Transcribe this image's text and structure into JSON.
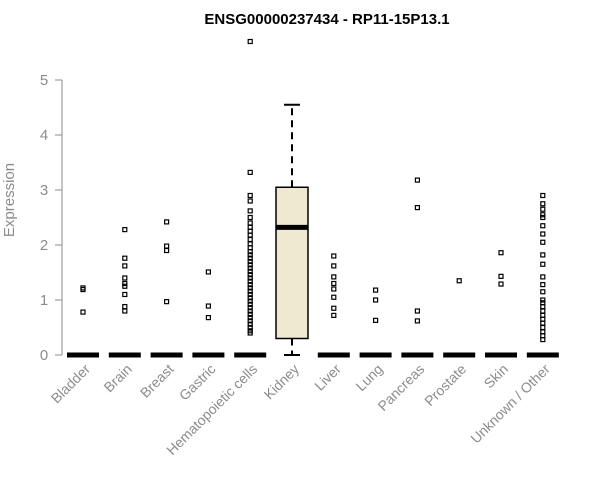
{
  "chart_data": {
    "type": "box",
    "title": "ENSG00000237434 - RP11-15P13.1",
    "ylabel": "Expression",
    "ylim": [
      0,
      5.5
    ],
    "yticks": [
      0,
      1,
      2,
      3,
      4,
      5
    ],
    "colors": {
      "box_fill": "#efe9d2",
      "axis": "#8c8c8c"
    },
    "categories": [
      "Bladder",
      "Brain",
      "Breast",
      "Gastric",
      "Hematopoietic cells",
      "Kidney",
      "Liver",
      "Lung",
      "Pancreas",
      "Prostate",
      "Skin",
      "Unknown / Other"
    ],
    "boxes": [
      {
        "category": "Bladder",
        "q1": 0,
        "median": 0,
        "q3": 0,
        "whisker_low": 0,
        "whisker_high": 0,
        "outliers": [
          1.22,
          1.19,
          0.78
        ]
      },
      {
        "category": "Brain",
        "q1": 0,
        "median": 0,
        "q3": 0,
        "whisker_low": 0,
        "whisker_high": 0,
        "outliers": [
          2.28,
          1.76,
          1.62,
          1.4,
          1.3,
          1.25,
          1.1,
          0.88,
          0.8
        ]
      },
      {
        "category": "Breast",
        "q1": 0,
        "median": 0,
        "q3": 0,
        "whisker_low": 0,
        "whisker_high": 0,
        "outliers": [
          2.42,
          1.98,
          1.9,
          0.97
        ]
      },
      {
        "category": "Gastric",
        "q1": 0,
        "median": 0,
        "q3": 0,
        "whisker_low": 0,
        "whisker_high": 0,
        "outliers": [
          1.51,
          0.89,
          0.68
        ]
      },
      {
        "category": "Hematopoietic cells",
        "q1": 0,
        "median": 0,
        "q3": 0,
        "whisker_low": 0,
        "whisker_high": 0,
        "outliers": [
          5.7,
          3.32,
          2.9,
          2.8,
          2.62,
          2.5,
          2.4,
          2.32,
          2.25,
          2.18,
          2.1,
          2.02,
          1.95,
          1.88,
          1.82,
          1.76,
          1.7,
          1.64,
          1.58,
          1.52,
          1.46,
          1.4,
          1.34,
          1.28,
          1.22,
          1.16,
          1.1,
          1.04,
          0.98,
          0.92,
          0.86,
          0.8,
          0.74,
          0.68,
          0.62,
          0.56,
          0.5,
          0.44,
          0.4
        ]
      },
      {
        "category": "Kidney",
        "q1": 0.3,
        "median": 2.32,
        "q3": 3.05,
        "whisker_low": 0.0,
        "whisker_high": 4.55,
        "outliers": []
      },
      {
        "category": "Liver",
        "q1": 0,
        "median": 0,
        "q3": 0,
        "whisker_low": 0,
        "whisker_high": 0,
        "outliers": [
          1.8,
          1.62,
          1.42,
          1.3,
          1.2,
          1.05,
          0.85,
          0.72
        ]
      },
      {
        "category": "Lung",
        "q1": 0,
        "median": 0,
        "q3": 0,
        "whisker_low": 0,
        "whisker_high": 0,
        "outliers": [
          1.18,
          1.0,
          0.63
        ]
      },
      {
        "category": "Pancreas",
        "q1": 0,
        "median": 0,
        "q3": 0,
        "whisker_low": 0,
        "whisker_high": 0,
        "outliers": [
          3.18,
          2.68,
          0.8,
          0.62
        ]
      },
      {
        "category": "Prostate",
        "q1": 0,
        "median": 0,
        "q3": 0,
        "whisker_low": 0,
        "whisker_high": 0,
        "outliers": [
          1.35
        ]
      },
      {
        "category": "Skin",
        "q1": 0,
        "median": 0,
        "q3": 0,
        "whisker_low": 0,
        "whisker_high": 0,
        "outliers": [
          1.86,
          1.43,
          1.29
        ]
      },
      {
        "category": "Unknown / Other",
        "q1": 0,
        "median": 0,
        "q3": 0,
        "whisker_low": 0,
        "whisker_high": 0,
        "outliers": [
          2.9,
          2.75,
          2.65,
          2.55,
          2.5,
          2.35,
          2.2,
          2.05,
          1.82,
          1.65,
          1.42,
          1.28,
          1.15,
          1.0,
          0.95,
          0.88,
          0.8,
          0.72,
          0.65,
          0.58,
          0.5,
          0.42,
          0.35,
          0.28
        ]
      }
    ]
  }
}
